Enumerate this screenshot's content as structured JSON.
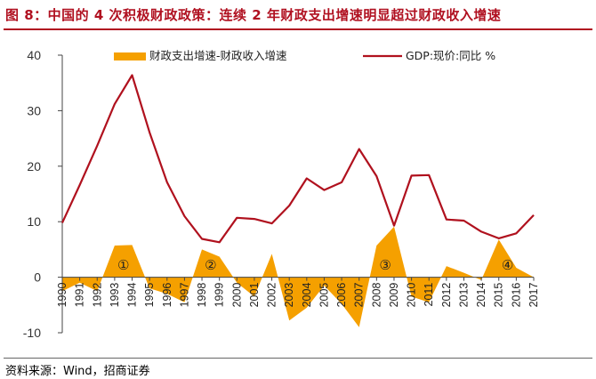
{
  "figure": {
    "title": "图 8：中国的 4 次积极财政政策：连续 2 年财政支出增速明显超过财政收入增速",
    "source": "资料来源：Wind，招商证券"
  },
  "colors": {
    "title": "#b01020",
    "area": "#f5a000",
    "line": "#b0111e",
    "axis": "#444444"
  },
  "chart_data": {
    "type": "line",
    "x": [
      1990,
      1991,
      1992,
      1993,
      1994,
      1995,
      1996,
      1997,
      1998,
      1999,
      2000,
      2001,
      2002,
      2003,
      2004,
      2005,
      2006,
      2007,
      2008,
      2009,
      2010,
      2011,
      2012,
      2013,
      2014,
      2015,
      2016,
      2017
    ],
    "ylim": [
      -10,
      40
    ],
    "yticks": [
      -10,
      0,
      10,
      20,
      30,
      40
    ],
    "ytick_labels": [
      "-10",
      "0",
      "10",
      "20",
      "30",
      "40"
    ],
    "legend_position": "top",
    "series": [
      {
        "name": "财政支出增速-财政收入增速",
        "type": "area",
        "color": "#f5a000",
        "values": [
          -2.5,
          -1.0,
          -2.5,
          5.7,
          5.8,
          -2.0,
          -3.0,
          -4.5,
          5.0,
          3.7,
          -1.0,
          -3.5,
          4.2,
          -7.8,
          -5.5,
          -1.5,
          -4.8,
          -9.0,
          5.7,
          9.1,
          -3.5,
          -4.5,
          2.0,
          0.8,
          -0.5,
          6.8,
          1.7,
          0.0
        ]
      },
      {
        "name": "GDP:现价:同比 %",
        "type": "line",
        "color": "#b0111e",
        "values": [
          9.8,
          16.6,
          23.7,
          31.2,
          36.4,
          26.1,
          17.1,
          11.0,
          6.9,
          6.3,
          10.7,
          10.5,
          9.7,
          12.9,
          17.8,
          15.7,
          17.1,
          23.1,
          18.2,
          9.3,
          18.3,
          18.4,
          10.4,
          10.2,
          8.2,
          7.0,
          7.9,
          11.2
        ]
      }
    ],
    "annotations": [
      {
        "label": "①",
        "x": 1993.5,
        "y": 2.2
      },
      {
        "label": "②",
        "x": 1998.5,
        "y": 2.2
      },
      {
        "label": "③",
        "x": 2008.5,
        "y": 2.2
      },
      {
        "label": "④",
        "x": 2015.5,
        "y": 2.2
      }
    ]
  }
}
